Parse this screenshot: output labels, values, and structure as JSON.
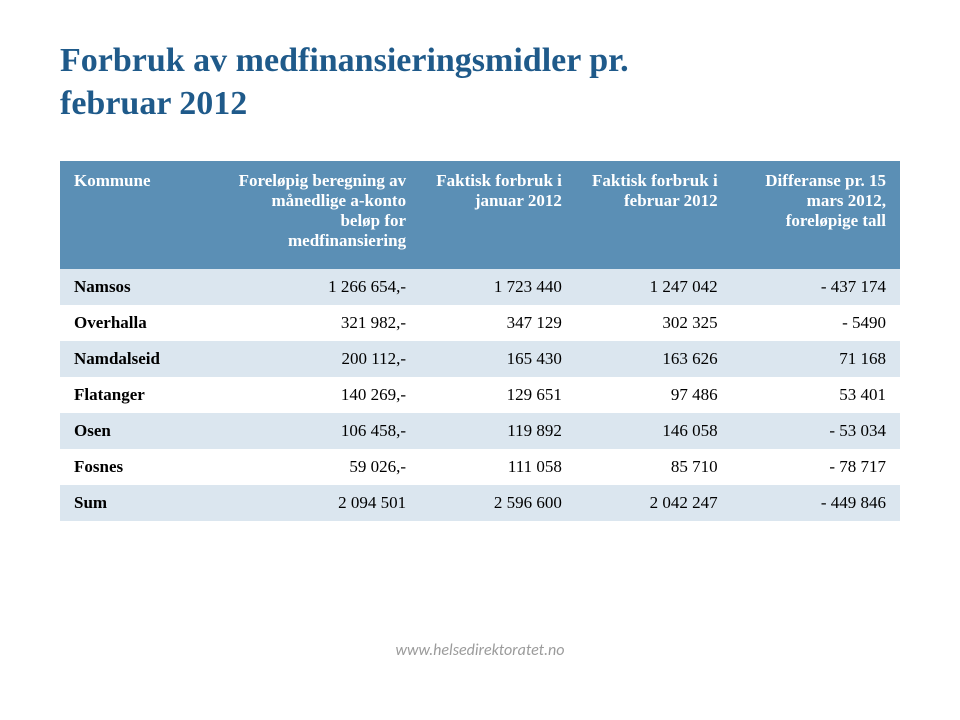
{
  "title": {
    "line1": "Forbruk av medfinansieringsmidler pr.",
    "line2": "februar 2012",
    "color": "#1f5a8a"
  },
  "table": {
    "header_bg": "#5b8fb5",
    "header_text_color": "#ffffff",
    "row_alt_bg": "#dbe6ef",
    "row_plain_bg": "#ffffff",
    "border_top_color": "#5b8fb5",
    "columns": [
      "Kommune",
      "Foreløpig beregning av månedlige a-konto beløp for medfinansiering",
      "Faktisk forbruk i januar 2012",
      "Faktisk forbruk i februar 2012",
      "Differanse pr. 15 mars 2012, foreløpige tall"
    ],
    "rows": [
      {
        "label": "Namsos",
        "cells": [
          "1 266 654,-",
          "1 723 440",
          "1 247 042",
          "- 437 174"
        ]
      },
      {
        "label": "Overhalla",
        "cells": [
          "321 982,-",
          "347 129",
          "302 325",
          "- 5490"
        ]
      },
      {
        "label": "Namdalseid",
        "cells": [
          "200 112,-",
          "165 430",
          "163 626",
          "71 168"
        ]
      },
      {
        "label": "Flatanger",
        "cells": [
          "140 269,-",
          "129 651",
          "97 486",
          "53 401"
        ]
      },
      {
        "label": "Osen",
        "cells": [
          "106 458,-",
          "119 892",
          "146 058",
          "- 53 034"
        ]
      },
      {
        "label": "Fosnes",
        "cells": [
          "59 026,-",
          "111 058",
          "85 710",
          "- 78 717"
        ]
      },
      {
        "label": "Sum",
        "cells": [
          "2 094 501",
          "2 596 600",
          "2 042 247",
          "- 449 846"
        ]
      }
    ]
  },
  "footer": {
    "text": "www.helsedirektoratet.no",
    "color": "#9b9b9b"
  }
}
